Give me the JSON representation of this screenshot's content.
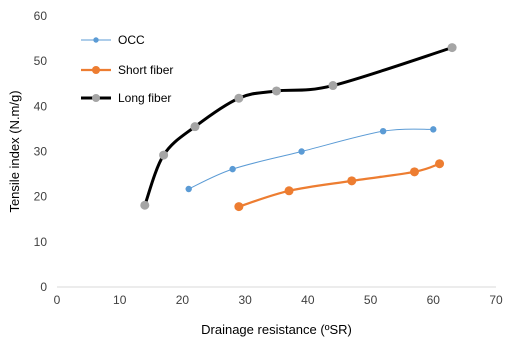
{
  "chart_data": {
    "type": "scatter",
    "xlabel": "Drainage resistance (ºSR)",
    "ylabel": "Tensile index (N.m/g)",
    "xlim": [
      0,
      70
    ],
    "ylim": [
      0,
      60
    ],
    "x_ticks": [
      "0",
      "10",
      "20",
      "30",
      "40",
      "50",
      "60",
      "70"
    ],
    "y_ticks": [
      "0",
      "10",
      "20",
      "30",
      "40",
      "50",
      "60"
    ],
    "grid": false,
    "legend_position": "top-left",
    "series": [
      {
        "name": "OCC",
        "color": "#5b9bd5",
        "line_width": "thin",
        "x": [
          21,
          28,
          39,
          52,
          60
        ],
        "y": [
          21.7,
          26.1,
          30.0,
          34.5,
          34.9
        ]
      },
      {
        "name": "Short fiber",
        "color": "#ed7d31",
        "line_width": "medium",
        "x": [
          29,
          37,
          47,
          57,
          61
        ],
        "y": [
          17.8,
          21.3,
          23.5,
          25.5,
          27.3
        ]
      },
      {
        "name": "Long fiber",
        "color": "#000000",
        "marker_color": "#a5a5a5",
        "line_width": "thick",
        "x": [
          14,
          17,
          22,
          29,
          35,
          44,
          63
        ],
        "y": [
          18.1,
          29.2,
          35.5,
          41.8,
          43.4,
          44.6,
          53.0
        ]
      }
    ]
  }
}
